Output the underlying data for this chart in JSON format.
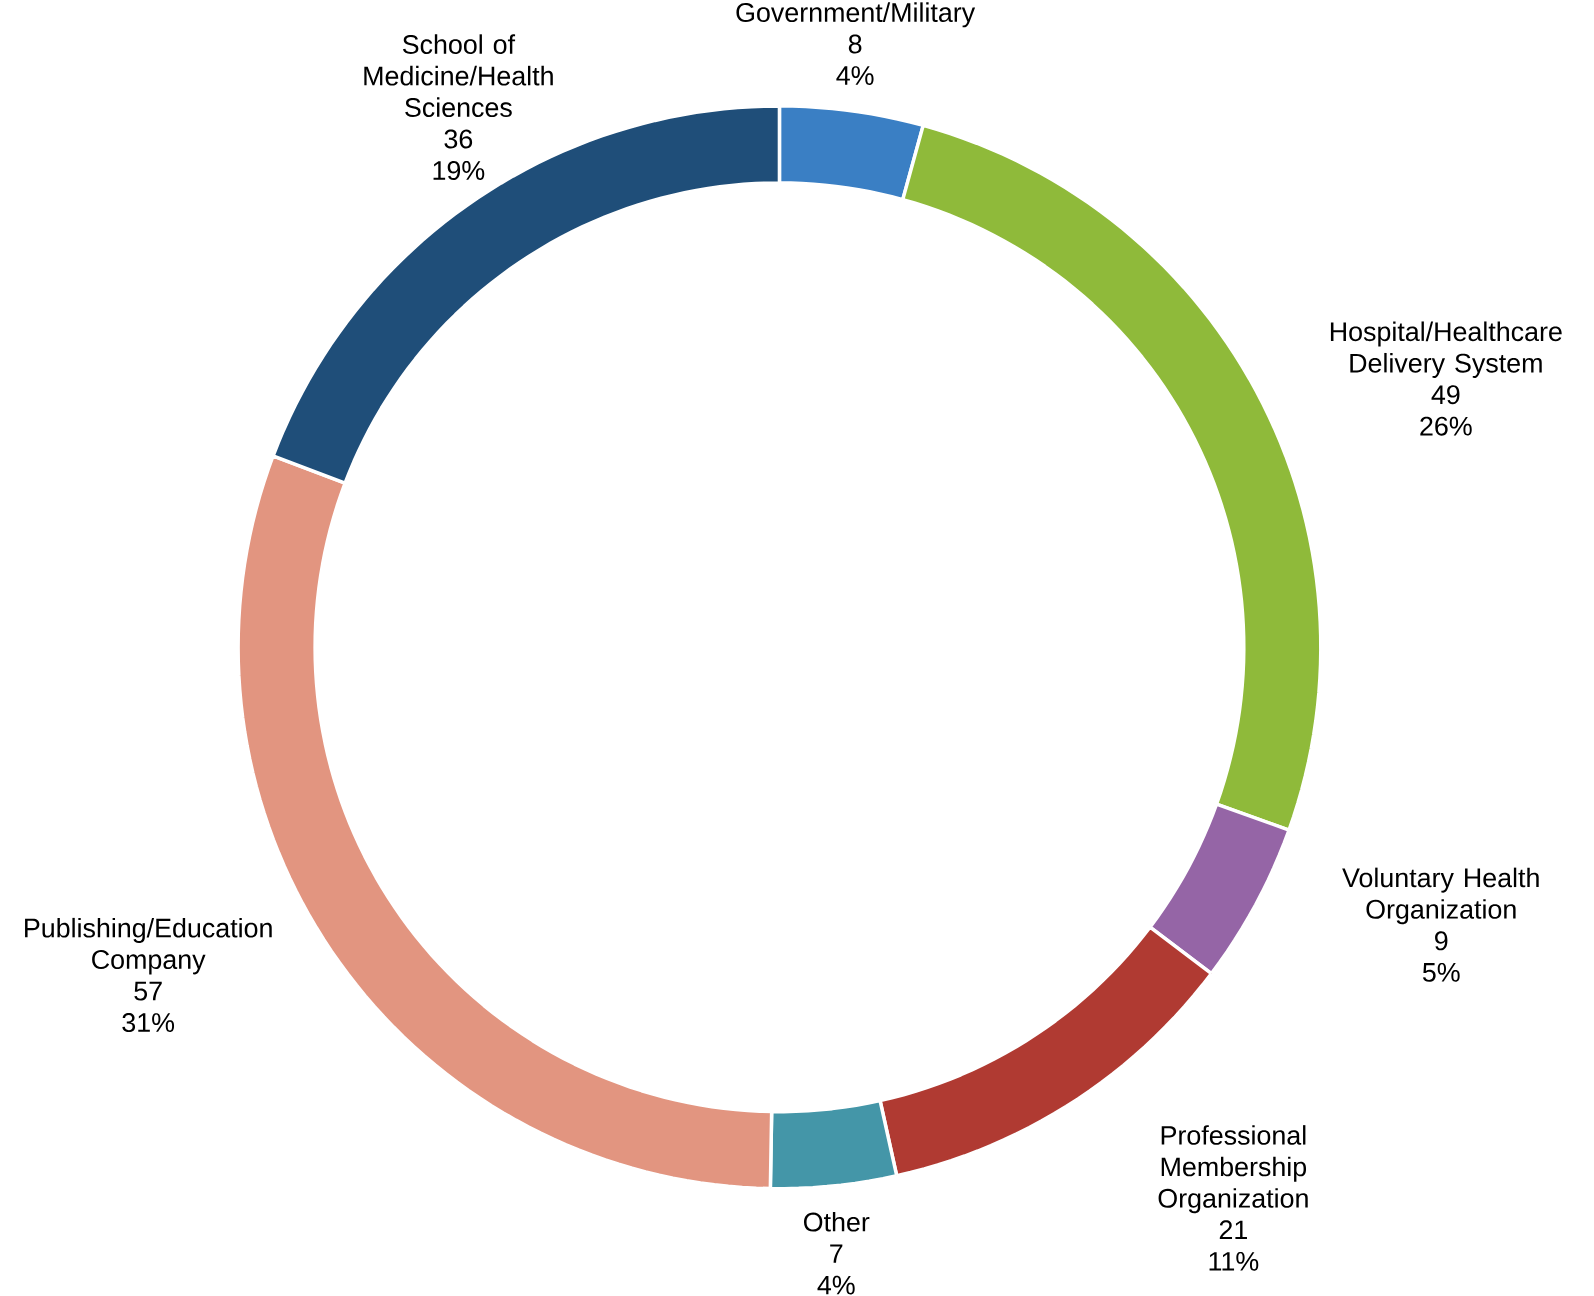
{
  "chart_data": {
    "type": "donut",
    "categories": [
      "Government/Military",
      "Hospital/Healthcare Delivery System",
      "Voluntary Health Organization",
      "Professional Membership Organization",
      "Other",
      "Publishing/Education Company",
      "School of Medicine/Health Sciences"
    ],
    "values": [
      8,
      49,
      9,
      21,
      7,
      57,
      36
    ],
    "colors": [
      "#3a7fc4",
      "#8fba3a",
      "#9565a6",
      "#b03a32",
      "#4496a8",
      "#e29580",
      "#1f4e79"
    ],
    "value_labels": [
      "8",
      "49",
      "9",
      "21",
      "7",
      "57",
      "36"
    ],
    "annotations": [
      {
        "text": "4%",
        "x": "Government/Military"
      },
      {
        "text": "26%",
        "x": "Hospital/Healthcare Delivery System"
      },
      {
        "text": "5%",
        "x": "Voluntary Health Organization"
      },
      {
        "text": "11%",
        "x": "Professional Membership Organization"
      },
      {
        "text": "4%",
        "x": "Other"
      },
      {
        "text": "31%",
        "x": "Publishing/Education Company"
      },
      {
        "text": "19%",
        "x": "School of Medicine/Health Sciences"
      }
    ]
  }
}
